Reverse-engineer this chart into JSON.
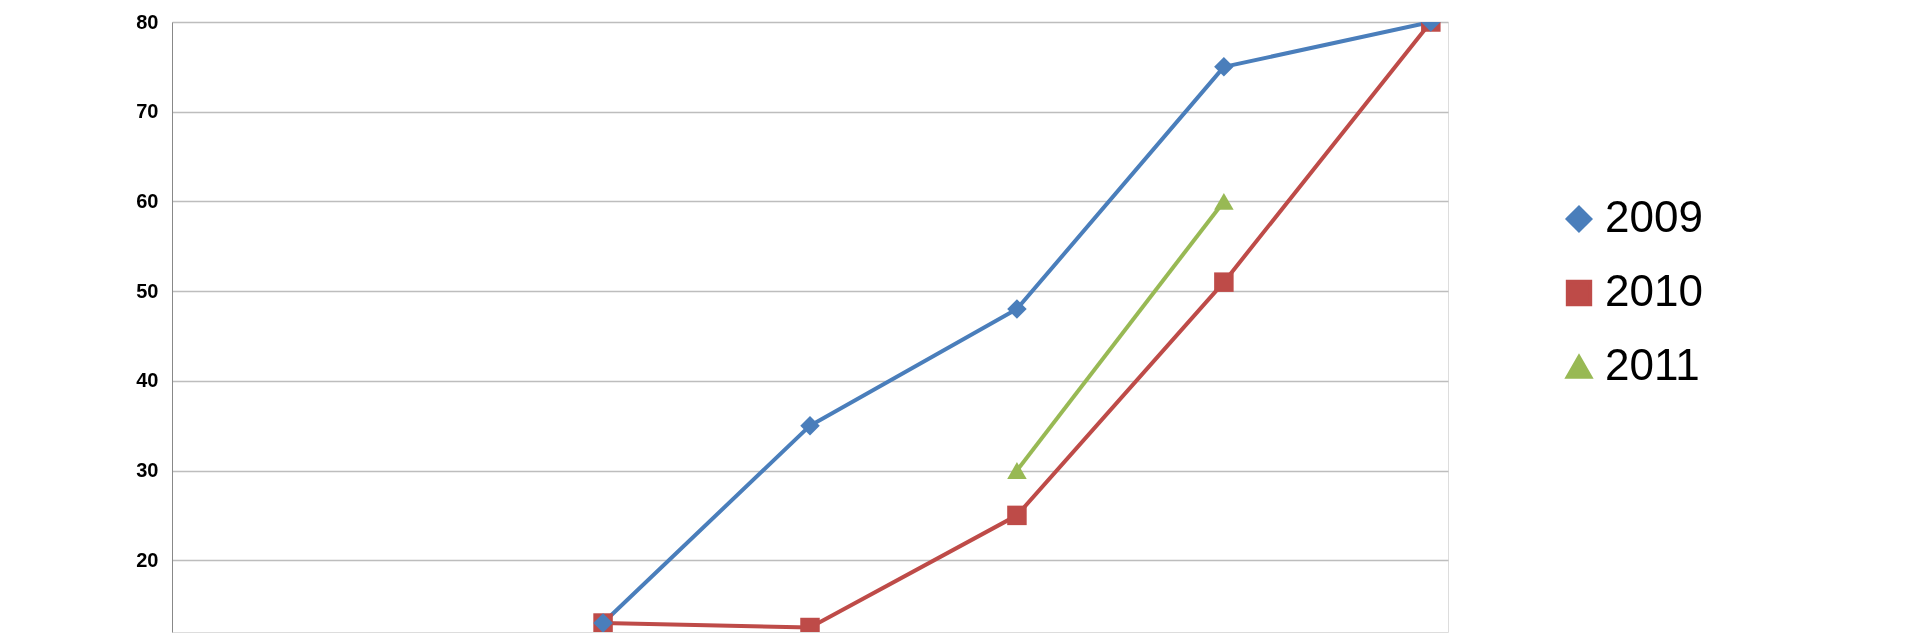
{
  "chart_data": {
    "type": "line",
    "categories": [
      null,
      null,
      null,
      null,
      null,
      null,
      null
    ],
    "series": [
      {
        "name": "2009",
        "color": "#4a7ebb",
        "marker": "diamond",
        "values": [
          null,
          null,
          13,
          35,
          48,
          75,
          80
        ]
      },
      {
        "name": "2010",
        "color": "#be4b48",
        "marker": "square",
        "values": [
          null,
          null,
          13,
          12.5,
          25,
          51,
          80
        ]
      },
      {
        "name": "2011",
        "color": "#98b954",
        "marker": "triangle",
        "values": [
          null,
          null,
          null,
          null,
          30,
          60,
          null
        ]
      }
    ],
    "ylim": [
      12,
      80
    ],
    "yticks": [
      20,
      30,
      40,
      50,
      60,
      70,
      80
    ],
    "grid": "y",
    "legend": "right",
    "tick_labels": "y",
    "line_style": "solid"
  }
}
